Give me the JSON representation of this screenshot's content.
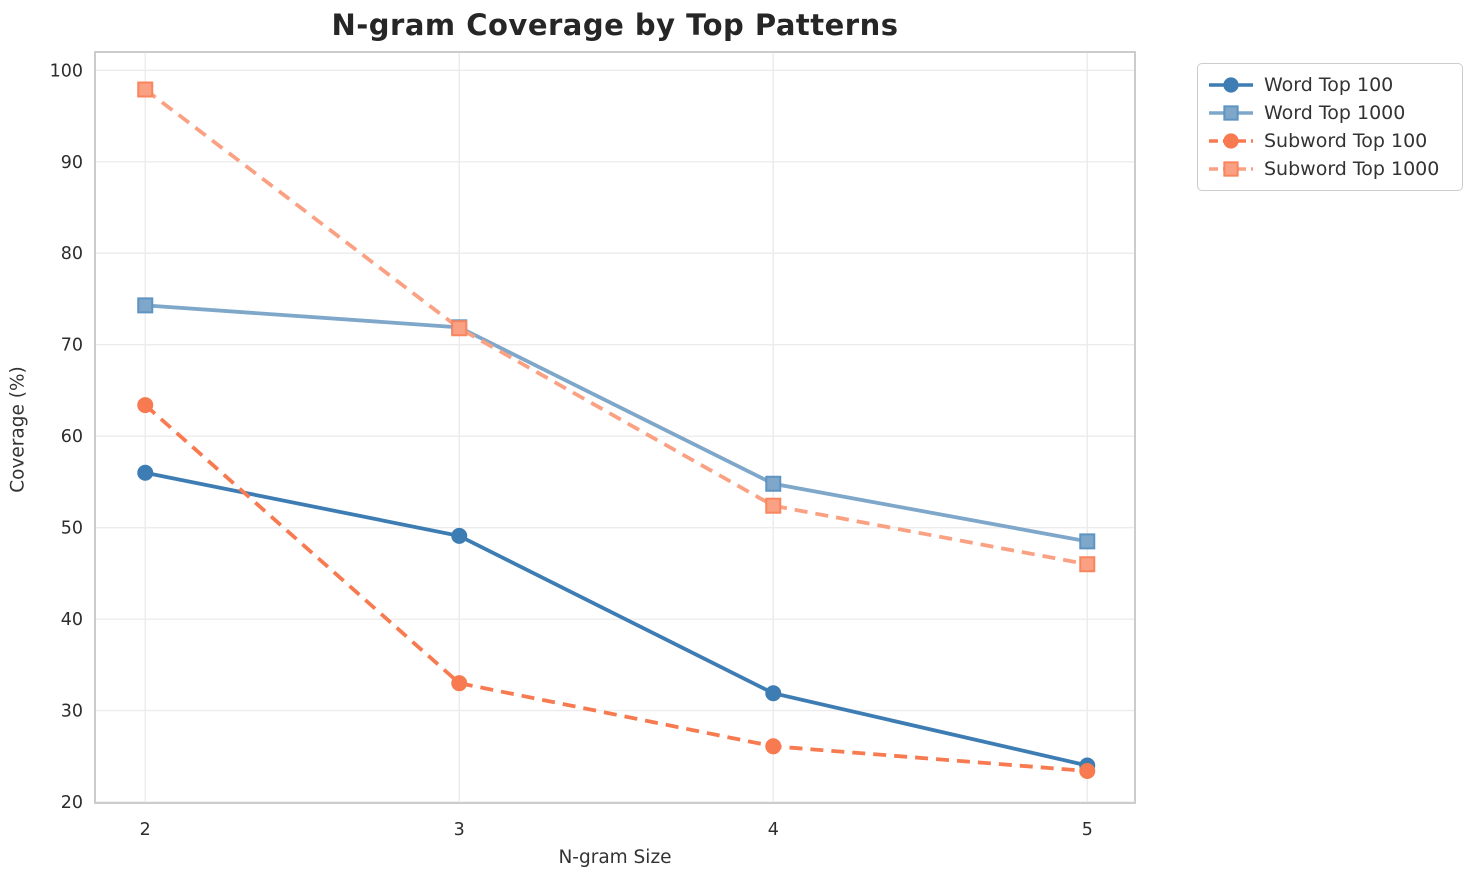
{
  "title": "N-gram Coverage by Top Patterns",
  "chart_data": {
    "type": "line",
    "title": "N-gram Coverage by Top Patterns",
    "xlabel": "N-gram Size",
    "ylabel": "Coverage (%)",
    "x": [
      2,
      3,
      4,
      5
    ],
    "x_tick_labels": [
      "2",
      "3",
      "4",
      "5"
    ],
    "y_ticks": [
      20,
      30,
      40,
      50,
      60,
      70,
      80,
      90,
      100
    ],
    "xlim": [
      1.84,
      5.152
    ],
    "ylim": [
      19.9,
      102.0
    ],
    "grid": true,
    "legend_position": "outside-top-right",
    "series": [
      {
        "name": "Word Top 100",
        "values": [
          56.0,
          49.1,
          31.9,
          24.0
        ],
        "color": "#3d7db3",
        "line_style": "solid",
        "marker": "circle"
      },
      {
        "name": "Word Top 1000",
        "values": [
          74.3,
          71.9,
          54.8,
          48.5
        ],
        "color": "#7ea7ca",
        "edge_color": "#5f94c2",
        "line_style": "solid",
        "marker": "square"
      },
      {
        "name": "Subword Top 100",
        "values": [
          63.4,
          33.0,
          26.1,
          23.4
        ],
        "color": "#f87a50",
        "line_style": "dashed",
        "marker": "circle"
      },
      {
        "name": "Subword Top 1000",
        "values": [
          97.9,
          71.8,
          52.4,
          46.0
        ],
        "color": "#fba183",
        "edge_color": "#f8855d",
        "line_style": "dashed",
        "marker": "square"
      }
    ],
    "colors": {
      "grid_line": "#ececec",
      "plot_border": "#cccccc",
      "tick_label": "#2d2d2d",
      "title_text": "#262626",
      "axis_label_text": "#333333",
      "legend_text": "#333333",
      "background": "#ffffff"
    }
  }
}
